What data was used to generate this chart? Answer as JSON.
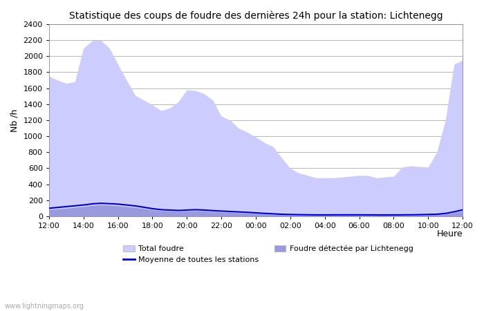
{
  "title": "Statistique des coups de foudre des dernières 24h pour la station: Lichtenegg",
  "xlabel": "Heure",
  "ylabel": "Nb /h",
  "xlim": [
    0,
    24
  ],
  "ylim": [
    0,
    2400
  ],
  "yticks": [
    0,
    200,
    400,
    600,
    800,
    1000,
    1200,
    1400,
    1600,
    1800,
    2000,
    2200,
    2400
  ],
  "xtick_pos": [
    0,
    2,
    4,
    6,
    8,
    10,
    12,
    14,
    16,
    18,
    20,
    22,
    24
  ],
  "xtick_labels": [
    "12:00",
    "14:00",
    "16:00",
    "18:00",
    "20:00",
    "22:00",
    "00:00",
    "02:00",
    "04:00",
    "06:00",
    "08:00",
    "10:00",
    "12:00"
  ],
  "background_color": "#ffffff",
  "total_foudre_color": "#ccccff",
  "lichtenegg_color": "#9999dd",
  "moyenne_color": "#0000cc",
  "watermark": "www.lightningmaps.org",
  "legend_total": "Total foudre",
  "legend_moyenne": "Moyenne de toutes les stations",
  "legend_lich": "Foudre détectée par Lichtenegg",
  "total_x": [
    0,
    0.5,
    1,
    1.5,
    2,
    2.5,
    3,
    3.5,
    4,
    4.5,
    5,
    5.5,
    6,
    6.5,
    7,
    7.5,
    8,
    8.5,
    9,
    9.5,
    10,
    10.5,
    11,
    11.5,
    12,
    12.5,
    13,
    13.5,
    14,
    14.5,
    15,
    15.5,
    16,
    16.5,
    17,
    17.5,
    18,
    18.5,
    19,
    19.5,
    20,
    20.5,
    21,
    21.5,
    22,
    22.5,
    23,
    23.5,
    24
  ],
  "total_y": [
    1750,
    1700,
    1660,
    1680,
    2100,
    2190,
    2200,
    2100,
    1900,
    1700,
    1510,
    1450,
    1390,
    1320,
    1350,
    1430,
    1580,
    1570,
    1530,
    1450,
    1250,
    1200,
    1100,
    1050,
    990,
    920,
    870,
    730,
    600,
    540,
    510,
    480,
    480,
    480,
    490,
    500,
    510,
    510,
    480,
    490,
    500,
    615,
    630,
    620,
    615,
    800,
    1200,
    1900,
    1950
  ],
  "lich_x": [
    0,
    0.5,
    1,
    1.5,
    2,
    2.5,
    3,
    3.5,
    4,
    4.5,
    5,
    5.5,
    6,
    6.5,
    7,
    7.5,
    8,
    8.5,
    9,
    9.5,
    10,
    10.5,
    11,
    11.5,
    12,
    12.5,
    13,
    13.5,
    14,
    14.5,
    15,
    15.5,
    16,
    16.5,
    17,
    17.5,
    18,
    18.5,
    19,
    19.5,
    20,
    20.5,
    21,
    21.5,
    22,
    22.5,
    23,
    23.5,
    24
  ],
  "lich_y": [
    85,
    90,
    100,
    110,
    120,
    135,
    142,
    138,
    130,
    120,
    110,
    95,
    80,
    68,
    65,
    60,
    65,
    68,
    65,
    58,
    52,
    48,
    43,
    40,
    33,
    28,
    23,
    20,
    18,
    16,
    14,
    13,
    13,
    13,
    14,
    14,
    14,
    14,
    12,
    12,
    12,
    14,
    14,
    16,
    18,
    20,
    28,
    44,
    64
  ],
  "moy_x": [
    0,
    0.5,
    1,
    1.5,
    2,
    2.5,
    3,
    3.5,
    4,
    4.5,
    5,
    5.5,
    6,
    6.5,
    7,
    7.5,
    8,
    8.5,
    9,
    9.5,
    10,
    10.5,
    11,
    11.5,
    12,
    12.5,
    13,
    13.5,
    14,
    14.5,
    15,
    15.5,
    16,
    16.5,
    17,
    17.5,
    18,
    18.5,
    19,
    19.5,
    20,
    20.5,
    21,
    21.5,
    22,
    22.5,
    23,
    23.5,
    24
  ],
  "moy_y": [
    100,
    110,
    120,
    130,
    140,
    155,
    162,
    158,
    152,
    140,
    130,
    112,
    95,
    82,
    78,
    72,
    78,
    82,
    78,
    70,
    65,
    60,
    55,
    50,
    42,
    36,
    30,
    25,
    22,
    20,
    18,
    17,
    17,
    17,
    18,
    18,
    18,
    18,
    16,
    16,
    16,
    18,
    18,
    20,
    22,
    25,
    35,
    55,
    80
  ]
}
